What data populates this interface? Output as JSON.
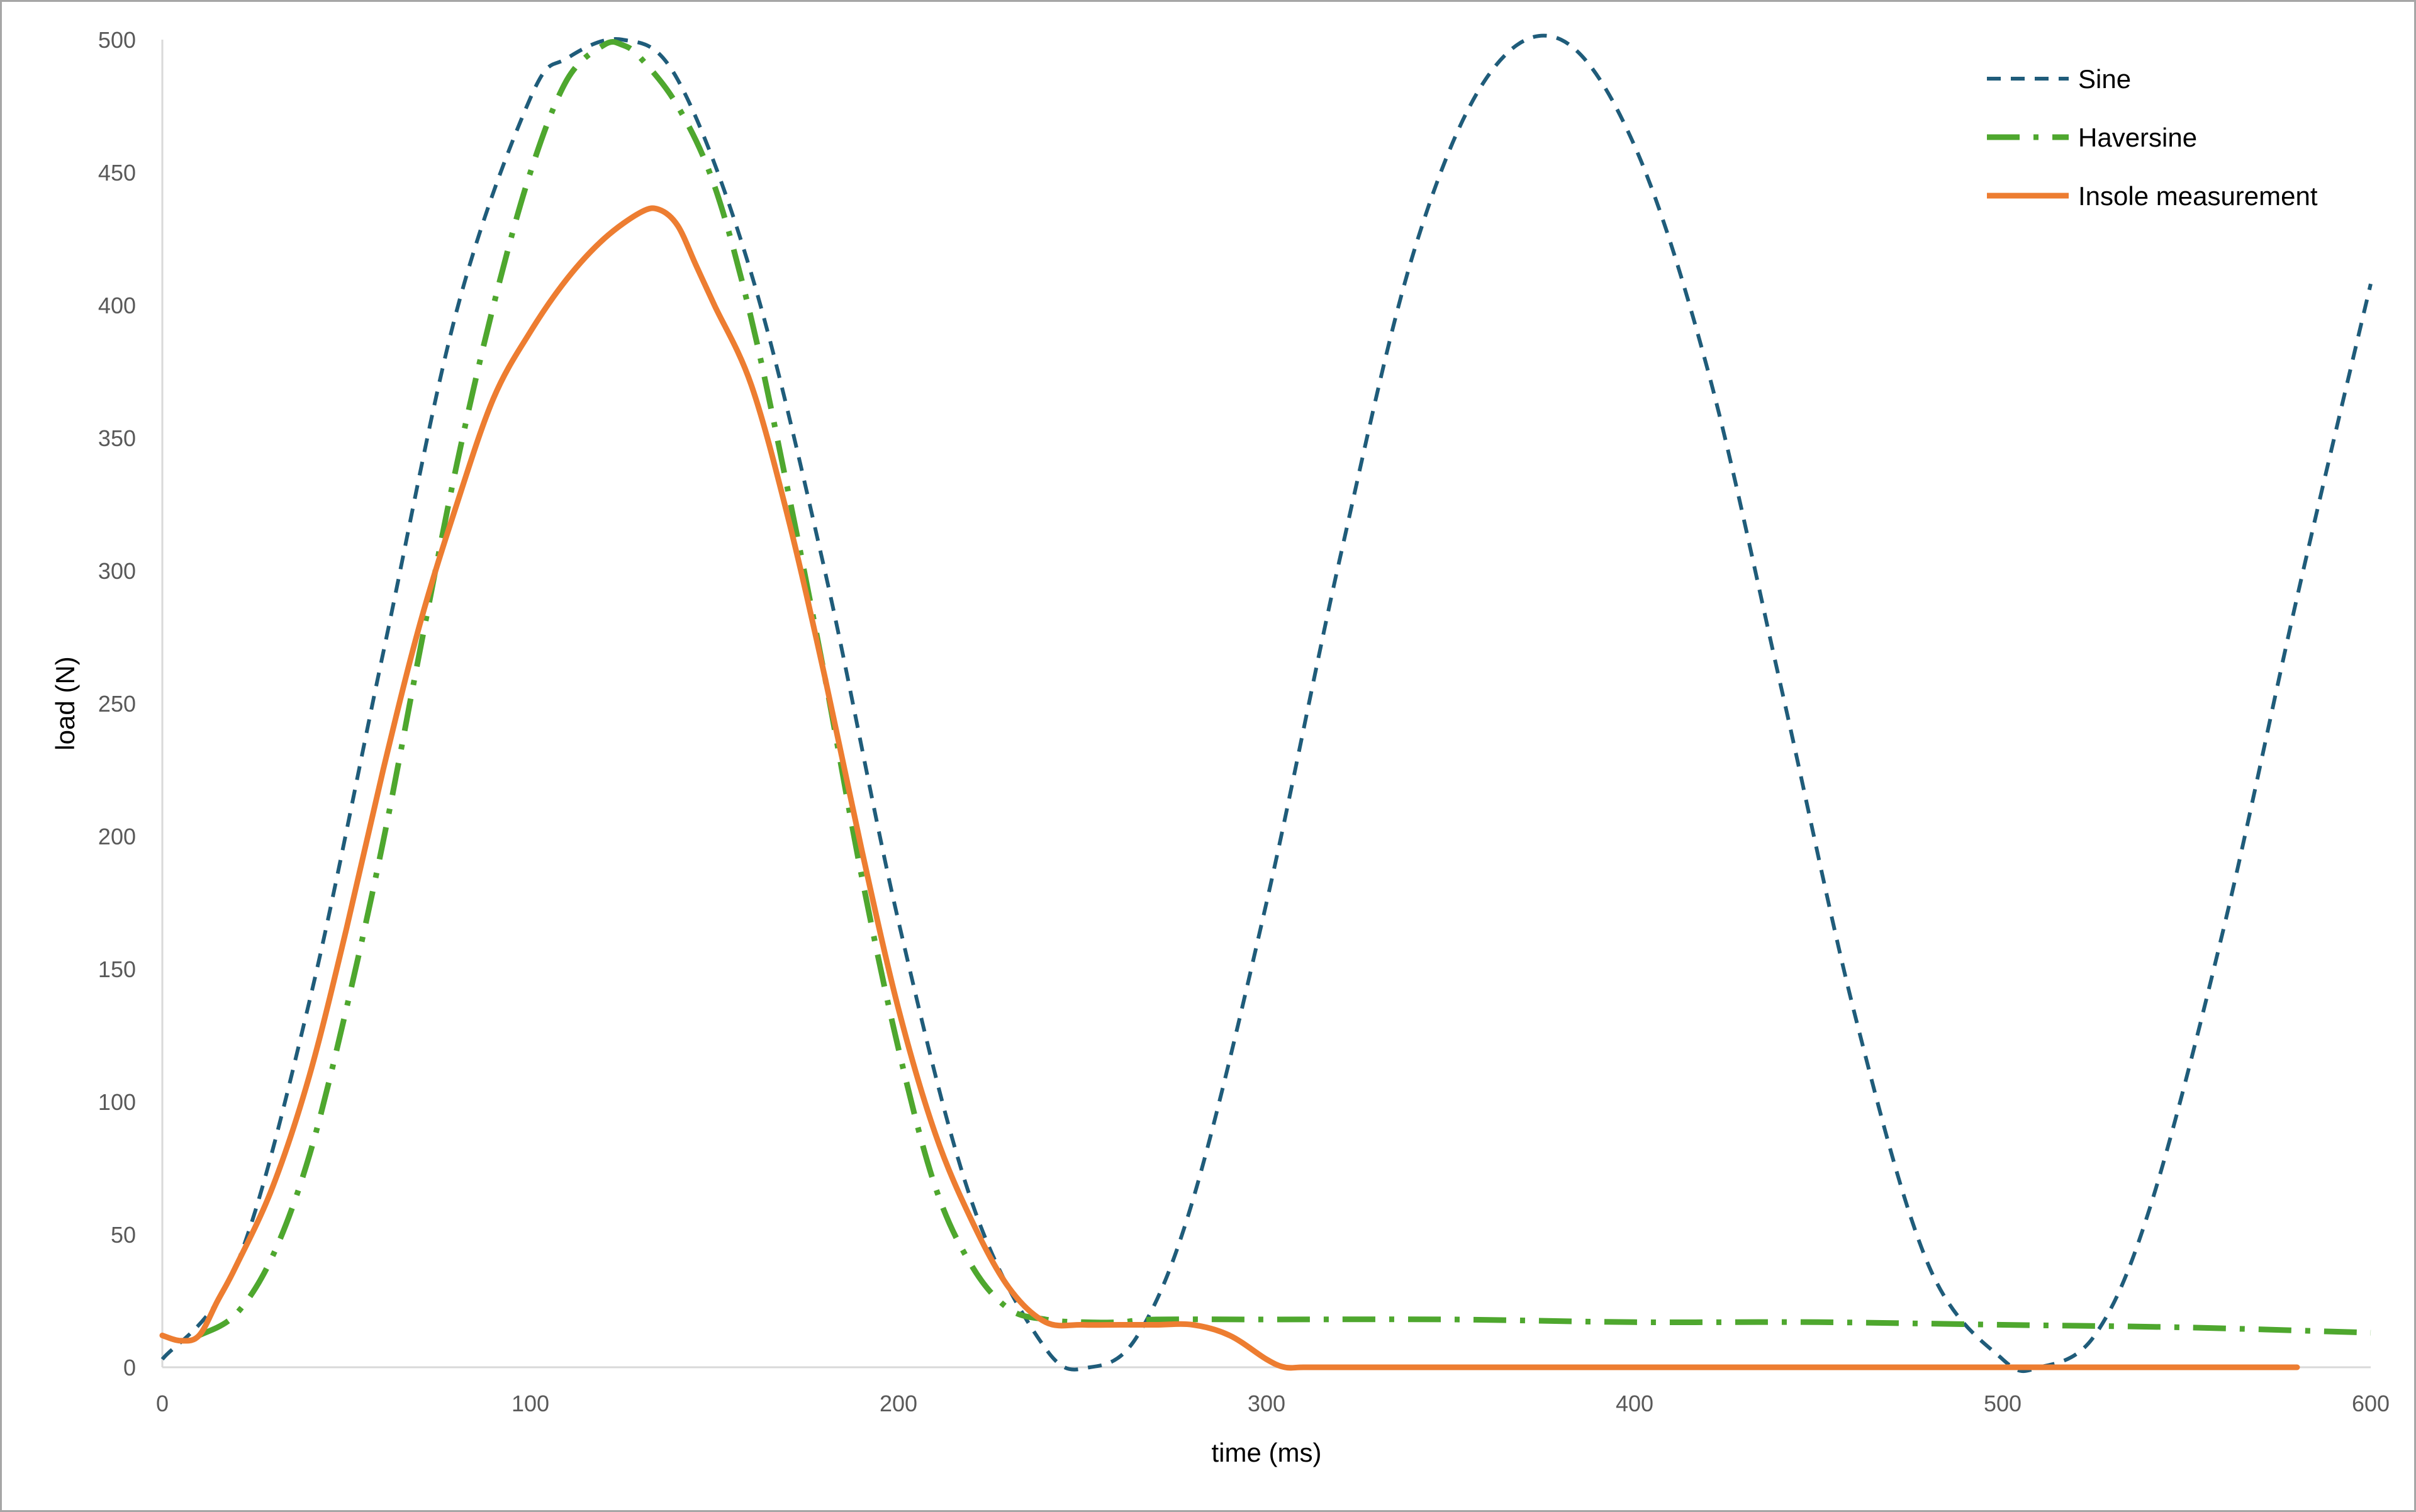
{
  "chart_data": {
    "type": "line",
    "title": "",
    "xlabel": "time (ms)",
    "ylabel": "load (N)",
    "xlim": [
      0,
      600
    ],
    "ylim": [
      0,
      500
    ],
    "xticks": [
      "0",
      "100",
      "200",
      "300",
      "400",
      "500",
      "600"
    ],
    "yticks": [
      "0",
      "50",
      "100",
      "150",
      "200",
      "250",
      "300",
      "350",
      "400",
      "450",
      "500"
    ],
    "grid": false,
    "legend_position": "top-right",
    "series": [
      {
        "name": "Sine",
        "color": "#1f5c7a",
        "style": "dashed",
        "x": [
          0,
          20,
          40,
          60,
          80,
          100,
          110,
          125,
          140,
          160,
          180,
          200,
          220,
          240,
          252,
          265,
          280,
          300,
          320,
          340,
          360,
          380,
          400,
          420,
          440,
          460,
          480,
          500,
          510,
          525,
          540,
          560,
          580,
          600
        ],
        "y": [
          3,
          38,
          138,
          269,
          398,
          478,
          493,
          500,
          485,
          412,
          300,
          168,
          62,
          7,
          0,
          12,
          63,
          175,
          305,
          420,
          486,
          500,
          460,
          375,
          255,
          132,
          38,
          3,
          0,
          12,
          60,
          165,
          290,
          408
        ]
      },
      {
        "name": "Haversine",
        "color": "#4ea72e",
        "style": "dash-dot",
        "x": [
          10,
          20,
          30,
          40,
          50,
          60,
          70,
          80,
          90,
          100,
          110,
          120,
          125,
          130,
          140,
          150,
          160,
          170,
          180,
          190,
          200,
          210,
          220,
          230,
          240,
          250,
          260,
          270,
          300,
          350,
          400,
          450,
          500,
          550,
          600
        ],
        "y": [
          12,
          20,
          42,
          80,
          135,
          198,
          270,
          340,
          400,
          450,
          485,
          498,
          498,
          493,
          475,
          445,
          395,
          330,
          260,
          185,
          120,
          68,
          38,
          22,
          18,
          17,
          17,
          18,
          18,
          18,
          17,
          17,
          16,
          15,
          13
        ]
      },
      {
        "name": "Insole measurement",
        "color": "#ed7d31",
        "style": "solid",
        "x": [
          0,
          5,
          10,
          15,
          20,
          30,
          40,
          50,
          60,
          70,
          80,
          90,
          100,
          110,
          120,
          130,
          135,
          140,
          145,
          150,
          160,
          170,
          180,
          190,
          200,
          210,
          220,
          230,
          240,
          250,
          260,
          270,
          280,
          290,
          300,
          305,
          310,
          320,
          400,
          500,
          580
        ],
        "y": [
          12,
          10,
          12,
          25,
          38,
          68,
          110,
          165,
          225,
          280,
          325,
          365,
          390,
          410,
          425,
          435,
          436,
          430,
          415,
          400,
          370,
          320,
          260,
          195,
          135,
          88,
          55,
          30,
          17,
          16,
          16,
          16,
          16,
          12,
          3,
          0,
          0,
          0,
          0,
          0,
          0
        ]
      }
    ]
  }
}
